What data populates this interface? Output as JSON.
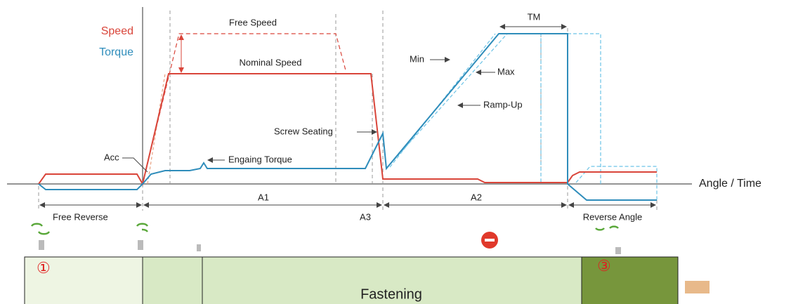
{
  "legend": {
    "speed": "Speed",
    "torque": "Torque"
  },
  "labels": {
    "free_speed": "Free Speed",
    "nominal_speed": "Nominal Speed",
    "min": "Min",
    "max": "Max",
    "ramp_up": "Ramp-Up",
    "tm": "TM",
    "screw_seating": "Screw Seating",
    "acc": "Acc",
    "engaging_torque": "Engaing Torque"
  },
  "axis_label": "Angle / Time",
  "segments": {
    "free_reverse": "Free Reverse",
    "a1": "A1",
    "a3": "A3",
    "a2": "A2",
    "reverse_angle": "Reverse Angle"
  },
  "phases": {
    "first": "①",
    "fastening": "Fastening",
    "third": "③"
  }
}
